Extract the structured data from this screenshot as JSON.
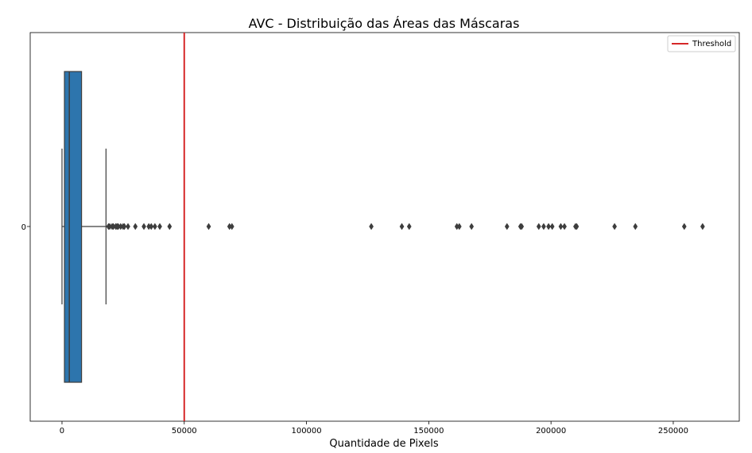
{
  "chart_data": {
    "type": "box",
    "title": "AVC - Distribuição das Áreas das Máscaras",
    "xlabel": "Quantidade de Pixels",
    "ylabel": "",
    "category": "0",
    "xlim": [
      -13000,
      277000
    ],
    "xticks": [
      0,
      50000,
      100000,
      150000,
      200000,
      250000
    ],
    "xtick_labels": [
      "0",
      "50000",
      "100000",
      "150000",
      "200000",
      "250000"
    ],
    "box": {
      "whisker_low": 0,
      "q1": 1000,
      "median": 3000,
      "q3": 8000,
      "whisker_high": 18000,
      "color": "#2d75ad"
    },
    "outliers": [
      19000,
      19500,
      20500,
      21000,
      22000,
      22500,
      23000,
      24000,
      25000,
      25500,
      27000,
      30000,
      33500,
      35500,
      36500,
      38000,
      40000,
      44000,
      60000,
      68500,
      69500,
      126500,
      139000,
      142000,
      161500,
      162500,
      167500,
      182000,
      187500,
      188000,
      195000,
      197000,
      199000,
      200500,
      204000,
      205500,
      210000,
      210500,
      226000,
      234500,
      254500,
      262000
    ],
    "threshold": {
      "value": 50000,
      "label": "Threshold",
      "color": "#d62728"
    },
    "legend": {
      "position": "top-right",
      "entries": [
        "Threshold"
      ]
    },
    "grid": false
  }
}
